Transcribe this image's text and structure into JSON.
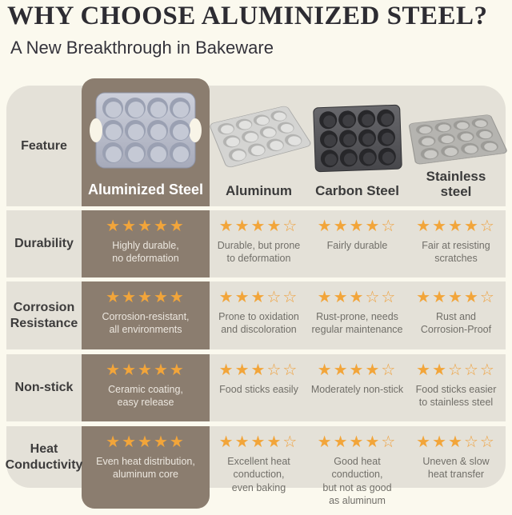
{
  "page": {
    "title": "WHY CHOOSE ALUMINIZED STEEL?",
    "subtitle": "A New Breakthrough in Bakeware"
  },
  "table": {
    "feature_header": "Feature",
    "columns": [
      "Aluminized Steel",
      "Aluminum",
      "Carbon Steel",
      "Stainless\nsteel"
    ],
    "rows": [
      {
        "feature": "Durability",
        "cells": [
          {
            "stars": 5,
            "max_stars": 5,
            "text": "Highly durable,\nno deformation"
          },
          {
            "stars": 4,
            "max_stars": 5,
            "text": "Durable, but prone\nto deformation"
          },
          {
            "stars": 4,
            "max_stars": 5,
            "text": "Fairly durable"
          },
          {
            "stars": 4,
            "max_stars": 5,
            "text": "Fair at resisting\nscratches"
          }
        ]
      },
      {
        "feature": "Corrosion\nResistance",
        "cells": [
          {
            "stars": 5,
            "max_stars": 5,
            "text": "Corrosion-resistant,\nall environments"
          },
          {
            "stars": 3,
            "max_stars": 5,
            "text": "Prone to oxidation\nand discoloration"
          },
          {
            "stars": 3,
            "max_stars": 5,
            "text": "Rust-prone, needs\nregular maintenance"
          },
          {
            "stars": 4,
            "max_stars": 5,
            "text": "Rust and\nCorrosion-Proof"
          }
        ]
      },
      {
        "feature": "Non-stick",
        "cells": [
          {
            "stars": 5,
            "max_stars": 5,
            "text": "Ceramic coating,\neasy release"
          },
          {
            "stars": 3,
            "max_stars": 5,
            "text": "Food sticks easily"
          },
          {
            "stars": 4,
            "max_stars": 5,
            "text": "Moderately non-stick"
          },
          {
            "stars": 2,
            "max_stars": 5,
            "text": "Food sticks easier\nto stainless steel"
          }
        ]
      },
      {
        "feature": "Heat\nConductivity",
        "cells": [
          {
            "stars": 5,
            "max_stars": 5,
            "text": "Even heat distribution,\naluminum core"
          },
          {
            "stars": 4,
            "max_stars": 5,
            "text": "Excellent heat\nconduction,\neven baking"
          },
          {
            "stars": 4,
            "max_stars": 5,
            "text": "Good heat conduction,\nbut not as good\nas aluminum"
          },
          {
            "stars": 3,
            "max_stars": 5,
            "text": "Uneven & slow\nheat transfer"
          }
        ]
      }
    ]
  },
  "icons": {
    "pan_images": [
      "aluminized-steel-pan-icon",
      "aluminum-pan-icon",
      "carbon-steel-pan-icon",
      "stainless-steel-pan-icon"
    ]
  },
  "colors": {
    "background": "#fbf9ee",
    "row_background": "#e4e1d8",
    "highlight_column": "#8b7d6f",
    "star_filled": "#f2a53a",
    "title_text": "#2d2c32",
    "highlight_cell_text": "#ece7df",
    "cell_text": "#716f69"
  }
}
